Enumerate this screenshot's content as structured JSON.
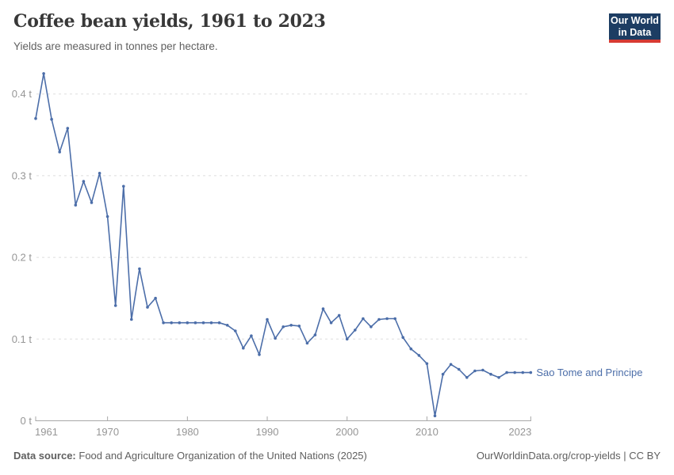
{
  "header": {
    "title": "Coffee bean yields, 1961 to 2023",
    "subtitle": "Yields are measured in tonnes per hectare.",
    "logo": {
      "line1": "Our World",
      "line2": "in Data",
      "bg_color": "#1d3d63",
      "bar_color": "#d73a33"
    }
  },
  "footer": {
    "source_label": "Data source:",
    "source_text": "Food and Agriculture Organization of the United Nations (2025)",
    "credit": "OurWorldinData.org/crop-yields | CC BY"
  },
  "chart_data": {
    "type": "line",
    "title": "Coffee bean yields, 1961 to 2023",
    "subtitle": "Yields are measured in tonnes per hectare.",
    "unit": "tonnes per hectare",
    "grid": "horizontal dashed",
    "legend_position": "end-of-line label",
    "xlim": [
      1961,
      2023
    ],
    "ylim": [
      0,
      0.44
    ],
    "x_ticks": [
      1961,
      1970,
      1980,
      1990,
      2000,
      2010,
      2023
    ],
    "y_ticks": [
      0,
      0.1,
      0.2,
      0.3,
      0.4
    ],
    "y_tick_labels": [
      "0 t",
      "0.1 t",
      "0.2 t",
      "0.3 t",
      "0.4 t"
    ],
    "x": [
      1961,
      1962,
      1963,
      1964,
      1965,
      1966,
      1967,
      1968,
      1969,
      1970,
      1971,
      1972,
      1973,
      1974,
      1975,
      1976,
      1977,
      1978,
      1979,
      1980,
      1981,
      1982,
      1983,
      1984,
      1985,
      1986,
      1987,
      1988,
      1989,
      1990,
      1991,
      1992,
      1993,
      1994,
      1995,
      1996,
      1997,
      1998,
      1999,
      2000,
      2001,
      2002,
      2003,
      2004,
      2005,
      2006,
      2007,
      2008,
      2009,
      2010,
      2011,
      2012,
      2013,
      2014,
      2015,
      2016,
      2017,
      2018,
      2019,
      2020,
      2021,
      2022,
      2023
    ],
    "series": [
      {
        "name": "Sao Tome and Principe",
        "color": "#4c6ea9",
        "values": [
          0.37,
          0.425,
          0.369,
          0.329,
          0.358,
          0.264,
          0.293,
          0.267,
          0.303,
          0.25,
          0.141,
          0.287,
          0.124,
          0.186,
          0.139,
          0.15,
          0.12,
          0.12,
          0.12,
          0.12,
          0.12,
          0.12,
          0.12,
          0.12,
          0.117,
          0.11,
          0.089,
          0.104,
          0.081,
          0.124,
          0.101,
          0.115,
          0.117,
          0.116,
          0.095,
          0.105,
          0.137,
          0.12,
          0.129,
          0.1,
          0.111,
          0.125,
          0.115,
          0.124,
          0.125,
          0.125,
          0.102,
          0.088,
          0.08,
          0.07,
          0.006,
          0.057,
          0.069,
          0.063,
          0.053,
          0.061,
          0.062,
          0.057,
          0.053,
          0.059,
          0.059,
          0.059,
          0.059
        ]
      }
    ],
    "colors": {
      "gridline": "#dedede",
      "axis": "#a8a8a8",
      "tick_label": "#969696"
    }
  }
}
